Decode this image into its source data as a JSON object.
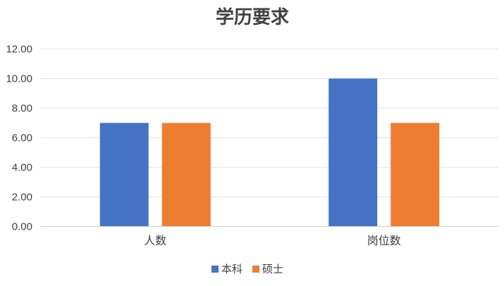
{
  "chart_data": {
    "type": "bar",
    "title": "学历要求",
    "categories": [
      "人数",
      "岗位数"
    ],
    "series": [
      {
        "name": "本科",
        "values": [
          7,
          10
        ],
        "color": "#4472c4"
      },
      {
        "name": "硕士",
        "values": [
          7,
          7
        ],
        "color": "#ed7d31"
      }
    ],
    "ylim": [
      0,
      12
    ],
    "yticks": [
      "0.00",
      "2.00",
      "4.00",
      "6.00",
      "8.00",
      "10.00",
      "12.00"
    ],
    "grid": true,
    "legend": "bottom"
  }
}
